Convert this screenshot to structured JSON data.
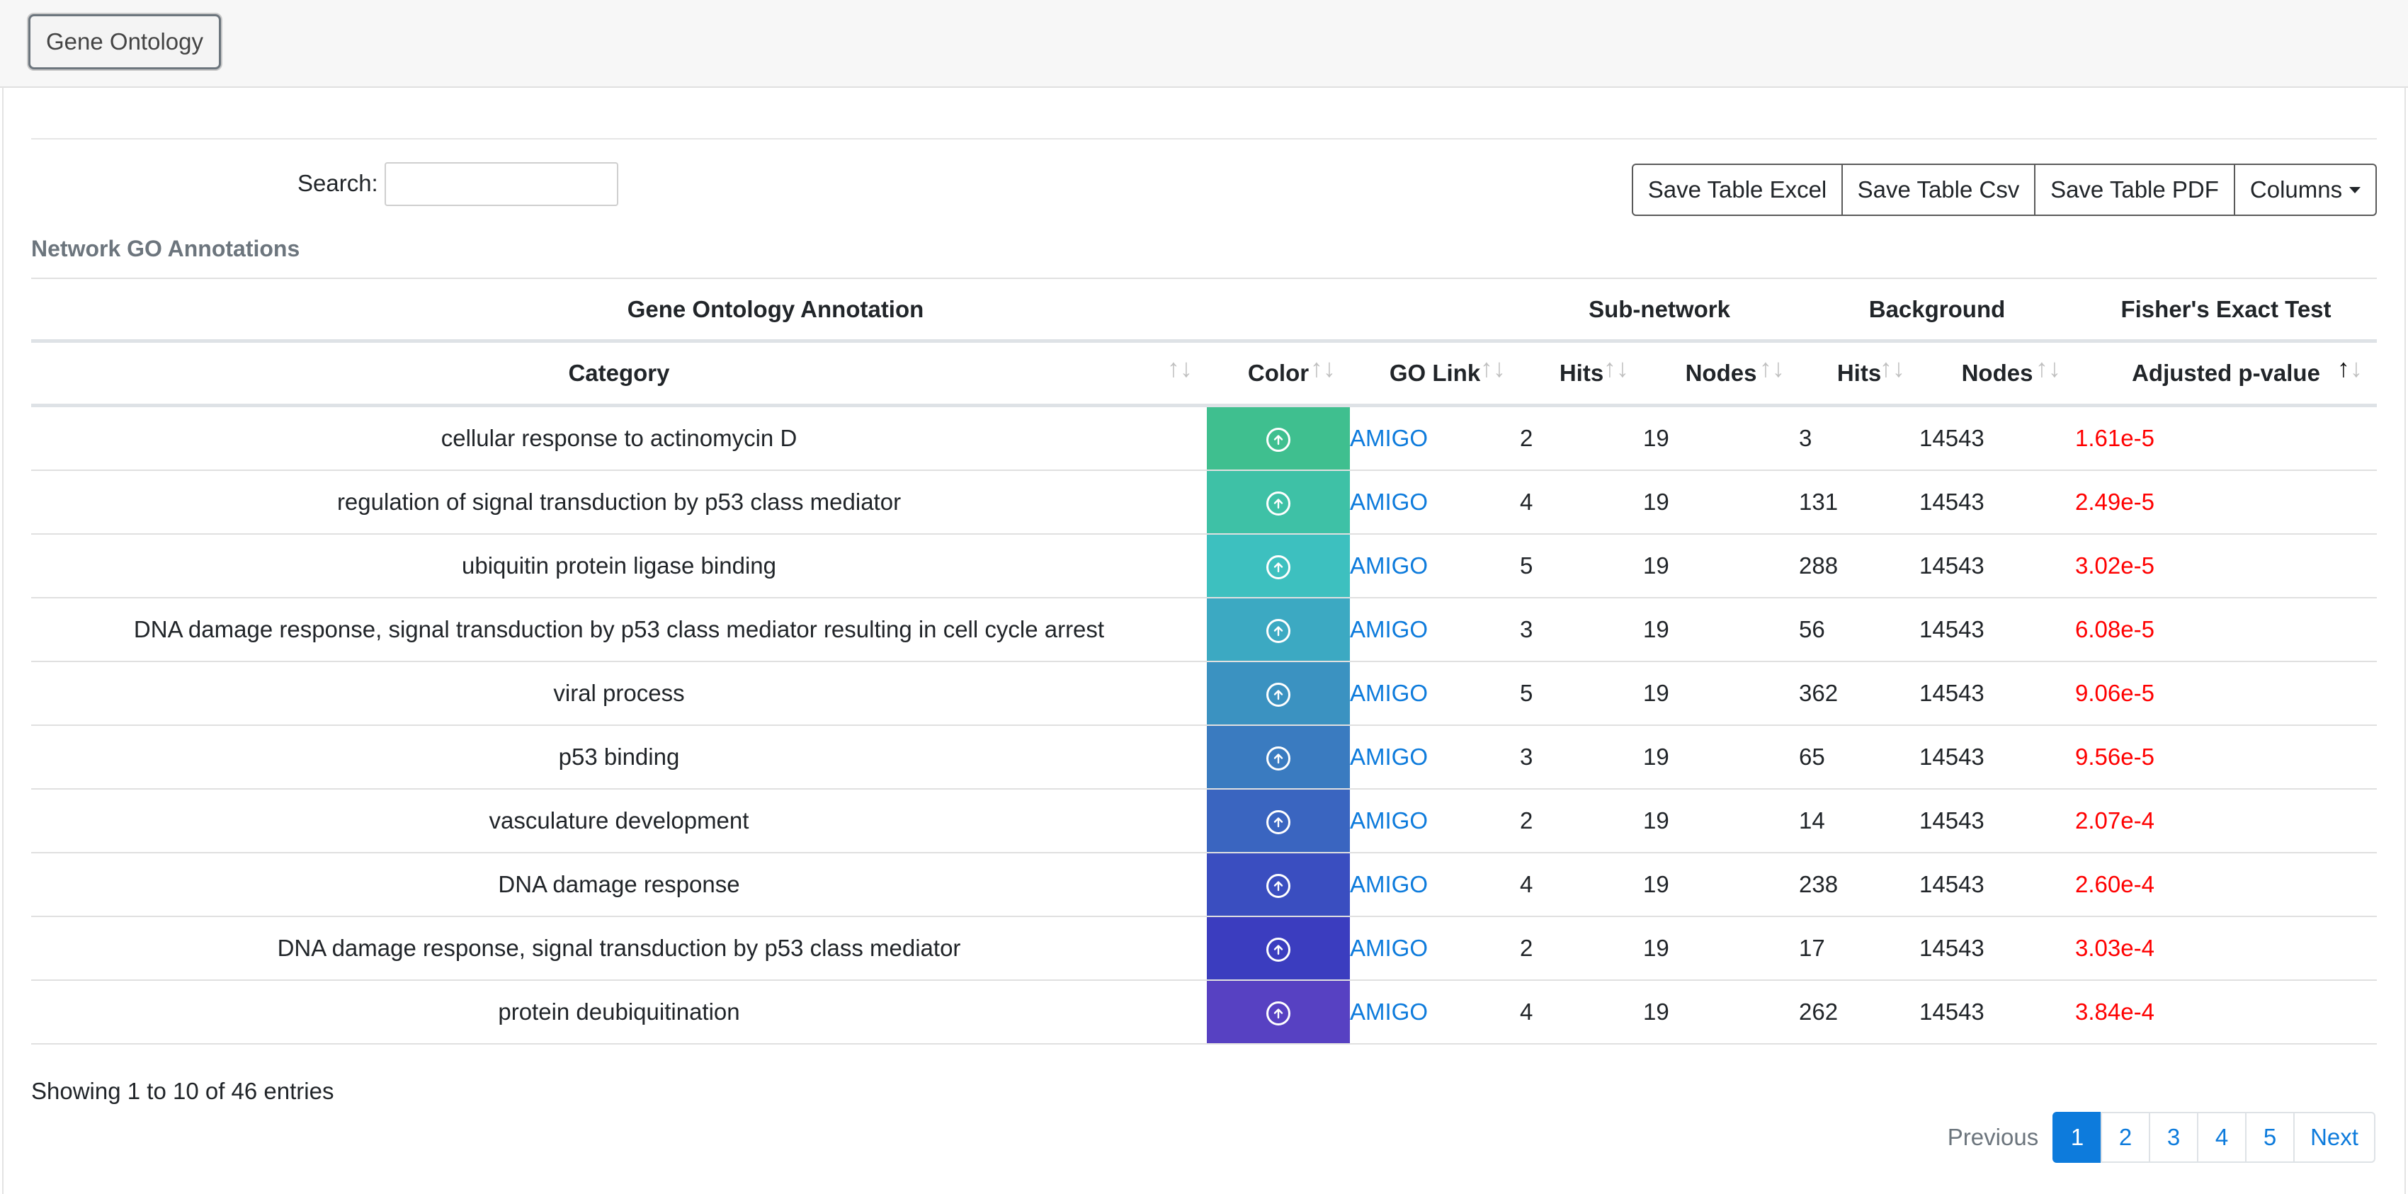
{
  "topbar": {
    "button_label": "Gene Ontology"
  },
  "search": {
    "label": "Search:",
    "value": ""
  },
  "toolbar": {
    "excel": "Save Table Excel",
    "csv": "Save Table Csv",
    "pdf": "Save Table PDF",
    "columns": "Columns"
  },
  "table": {
    "title": "Network GO Annotations",
    "group_headers": [
      "Gene Ontology Annotation",
      "Sub-network",
      "Background",
      "Fisher's Exact Test"
    ],
    "column_headers": [
      "Category",
      "Color",
      "GO Link",
      "Hits",
      "Nodes",
      "Hits",
      "Nodes",
      "Adjusted p-value"
    ],
    "sorted_column": "Adjusted p-value",
    "rows": [
      {
        "category": "cellular response to actinomycin D",
        "color": "#3fbf8f",
        "link": "AMIGO",
        "sub_hits": "2",
        "sub_nodes": "19",
        "bg_hits": "3",
        "bg_nodes": "14543",
        "pvalue": "1.61e-5"
      },
      {
        "category": "regulation of signal transduction by p53 class mediator",
        "color": "#3ec1a6",
        "link": "AMIGO",
        "sub_hits": "4",
        "sub_nodes": "19",
        "bg_hits": "131",
        "bg_nodes": "14543",
        "pvalue": "2.49e-5"
      },
      {
        "category": "ubiquitin protein ligase binding",
        "color": "#3dc0bf",
        "link": "AMIGO",
        "sub_hits": "5",
        "sub_nodes": "19",
        "bg_hits": "288",
        "bg_nodes": "14543",
        "pvalue": "3.02e-5"
      },
      {
        "category": "DNA damage response, signal transduction by p53 class mediator resulting in cell cycle arrest",
        "color": "#3ca9c2",
        "link": "AMIGO",
        "sub_hits": "3",
        "sub_nodes": "19",
        "bg_hits": "56",
        "bg_nodes": "14543",
        "pvalue": "6.08e-5"
      },
      {
        "category": "viral process",
        "color": "#3b92c1",
        "link": "AMIGO",
        "sub_hits": "5",
        "sub_nodes": "19",
        "bg_hits": "362",
        "bg_nodes": "14543",
        "pvalue": "9.06e-5"
      },
      {
        "category": "p53 binding",
        "color": "#3a7bc0",
        "link": "AMIGO",
        "sub_hits": "3",
        "sub_nodes": "19",
        "bg_hits": "65",
        "bg_nodes": "14543",
        "pvalue": "9.56e-5"
      },
      {
        "category": "vasculature development",
        "color": "#3a65c0",
        "link": "AMIGO",
        "sub_hits": "2",
        "sub_nodes": "19",
        "bg_hits": "14",
        "bg_nodes": "14543",
        "pvalue": "2.07e-4"
      },
      {
        "category": "DNA damage response",
        "color": "#3a4ec0",
        "link": "AMIGO",
        "sub_hits": "4",
        "sub_nodes": "19",
        "bg_hits": "238",
        "bg_nodes": "14543",
        "pvalue": "2.60e-4"
      },
      {
        "category": "DNA damage response, signal transduction by p53 class mediator",
        "color": "#3b3dbf",
        "link": "AMIGO",
        "sub_hits": "2",
        "sub_nodes": "19",
        "bg_hits": "17",
        "bg_nodes": "14543",
        "pvalue": "3.03e-4"
      },
      {
        "category": "protein deubiquitination",
        "color": "#5741c2",
        "link": "AMIGO",
        "sub_hits": "4",
        "sub_nodes": "19",
        "bg_hits": "262",
        "bg_nodes": "14543",
        "pvalue": "3.84e-4"
      }
    ]
  },
  "footer": {
    "info": "Showing 1 to 10 of 46 entries",
    "previous": "Previous",
    "pages": [
      "1",
      "2",
      "3",
      "4",
      "5"
    ],
    "active_page": "1",
    "next": "Next"
  },
  "colors": {
    "link": "#0d7bdc",
    "pvalue": "#ff0000",
    "active_page": "#0d7bdc"
  }
}
